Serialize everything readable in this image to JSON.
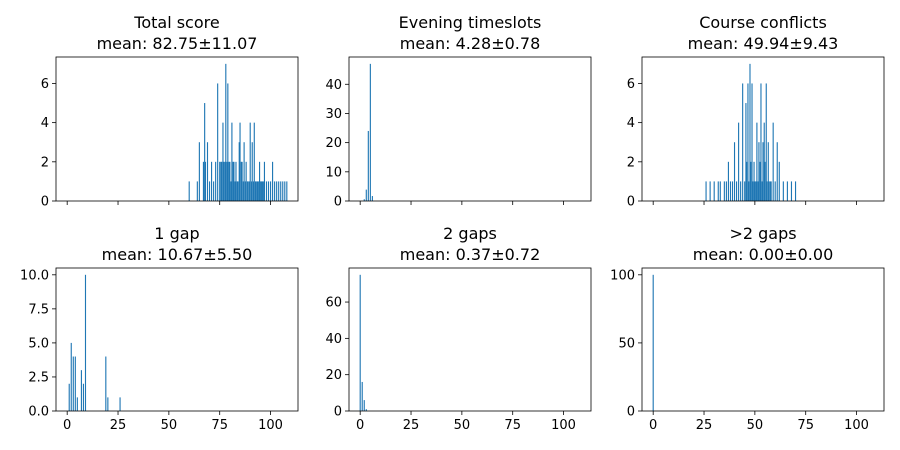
{
  "chart_data": [
    {
      "type": "bar",
      "title": "Total score",
      "subtitle": "mean: 82.75±11.07",
      "ylim": [
        0,
        7.35
      ],
      "yticks": [
        "0",
        "2",
        "4",
        "6"
      ],
      "show_x_tick_labels": false,
      "bar_color": "#1f77b4",
      "x": [
        60,
        64,
        65,
        67,
        67.6,
        68,
        69,
        70,
        71,
        72,
        73,
        74,
        75,
        75.6,
        76,
        76.6,
        77,
        77.6,
        78,
        78.6,
        79,
        79.6,
        80,
        80.6,
        81,
        81.6,
        82,
        82.6,
        83,
        83.6,
        84,
        84.6,
        85,
        85.6,
        86,
        86.6,
        87,
        87.6,
        88,
        88.6,
        89,
        89.6,
        90,
        90.6,
        91,
        91.6,
        92,
        92.6,
        93,
        93.6,
        94,
        94.6,
        95,
        95.6,
        96,
        96.6,
        97,
        98,
        99,
        100,
        101,
        102,
        103,
        104,
        105,
        106,
        107,
        108
      ],
      "values": [
        1,
        1,
        3,
        2,
        5,
        2,
        3,
        1,
        2,
        1,
        2,
        6,
        2,
        2,
        2,
        4,
        2,
        2,
        7,
        2,
        6,
        2,
        2,
        1,
        4,
        2,
        2,
        1,
        2,
        1,
        1,
        3,
        4,
        2,
        2,
        1,
        3,
        1,
        2,
        1,
        1,
        1,
        4,
        1,
        3,
        1,
        4,
        1,
        1,
        1,
        1,
        2,
        1,
        1,
        1,
        1,
        2,
        1,
        1,
        1,
        2,
        1,
        1,
        1,
        1,
        1,
        1,
        1
      ]
    },
    {
      "type": "bar",
      "title": "Evening timeslots",
      "subtitle": "mean: 4.28±0.78",
      "ylim": [
        0,
        49.35
      ],
      "yticks": [
        "0",
        "10",
        "20",
        "30",
        "40"
      ],
      "show_x_tick_labels": false,
      "bar_color": "#1f77b4",
      "x": [
        2,
        3,
        4,
        5,
        6
      ],
      "values": [
        0.6,
        3.9,
        24,
        47,
        1.7
      ]
    },
    {
      "type": "bar",
      "title": "Course conflicts",
      "subtitle": "mean: 49.94±9.43",
      "ylim": [
        0,
        7.35
      ],
      "yticks": [
        "0",
        "2",
        "4",
        "6"
      ],
      "show_x_tick_labels": false,
      "bar_color": "#1f77b4",
      "x": [
        26,
        28,
        30,
        32,
        33,
        35,
        36,
        37,
        38,
        39,
        40,
        41,
        42,
        43,
        44,
        45,
        45.6,
        46,
        46.6,
        47,
        47.6,
        48,
        48.6,
        49,
        49.6,
        50,
        50.6,
        51,
        51.6,
        52,
        52.6,
        53,
        53.6,
        54,
        54.6,
        55,
        55.6,
        56,
        56.6,
        57,
        57.6,
        58,
        59,
        60,
        61,
        62,
        64,
        66,
        68,
        70
      ],
      "values": [
        1,
        1,
        1,
        1,
        1,
        1,
        1,
        2,
        1,
        1,
        3,
        1,
        4,
        1,
        6,
        1,
        5,
        2,
        6,
        1,
        7,
        2,
        6,
        1,
        2,
        1,
        1,
        4,
        1,
        3,
        2,
        6,
        1,
        3,
        4,
        2,
        6,
        1,
        3,
        1,
        1,
        1,
        4,
        1,
        3,
        2,
        1,
        1,
        1,
        1
      ]
    },
    {
      "type": "bar",
      "title": "1 gap",
      "subtitle": "mean: 10.67±5.50",
      "ylim": [
        0,
        10.5
      ],
      "xlim": [
        -5.5,
        113.5
      ],
      "xticks": [
        "0",
        "25",
        "50",
        "75",
        "100"
      ],
      "xtick_values": [
        0,
        25,
        50,
        75,
        100
      ],
      "yticks": [
        "0.0",
        "2.5",
        "5.0",
        "7.5",
        "10.0"
      ],
      "ytick_values": [
        0,
        2.5,
        5,
        7.5,
        10
      ],
      "bar_color": "#1f77b4",
      "x": [
        1,
        2,
        3,
        4,
        5,
        7,
        8,
        9,
        19,
        20,
        26
      ],
      "values": [
        2,
        5,
        4,
        4,
        1,
        3,
        2,
        10,
        4,
        1,
        1
      ]
    },
    {
      "type": "bar",
      "title": "2 gaps",
      "subtitle": "mean: 0.37±0.72",
      "ylim": [
        0,
        78.75
      ],
      "xlim": [
        -5.5,
        113.5
      ],
      "xticks": [
        "0",
        "25",
        "50",
        "75",
        "100"
      ],
      "xtick_values": [
        0,
        25,
        50,
        75,
        100
      ],
      "yticks": [
        "0",
        "20",
        "40",
        "60"
      ],
      "ytick_values": [
        0,
        20,
        40,
        60
      ],
      "bar_color": "#1f77b4",
      "x": [
        0,
        1,
        2,
        3
      ],
      "values": [
        75,
        16,
        6,
        1
      ]
    },
    {
      "type": "bar",
      "title": ">2 gaps",
      "subtitle": "mean: 0.00±0.00",
      "ylim": [
        0,
        105
      ],
      "xlim": [
        -5.5,
        113.5
      ],
      "xticks": [
        "0",
        "25",
        "50",
        "75",
        "100"
      ],
      "xtick_values": [
        0,
        25,
        50,
        75,
        100
      ],
      "yticks": [
        "0",
        "50",
        "100"
      ],
      "ytick_values": [
        0,
        50,
        100
      ],
      "bar_color": "#1f77b4",
      "x": [
        0
      ],
      "values": [
        100
      ]
    }
  ]
}
